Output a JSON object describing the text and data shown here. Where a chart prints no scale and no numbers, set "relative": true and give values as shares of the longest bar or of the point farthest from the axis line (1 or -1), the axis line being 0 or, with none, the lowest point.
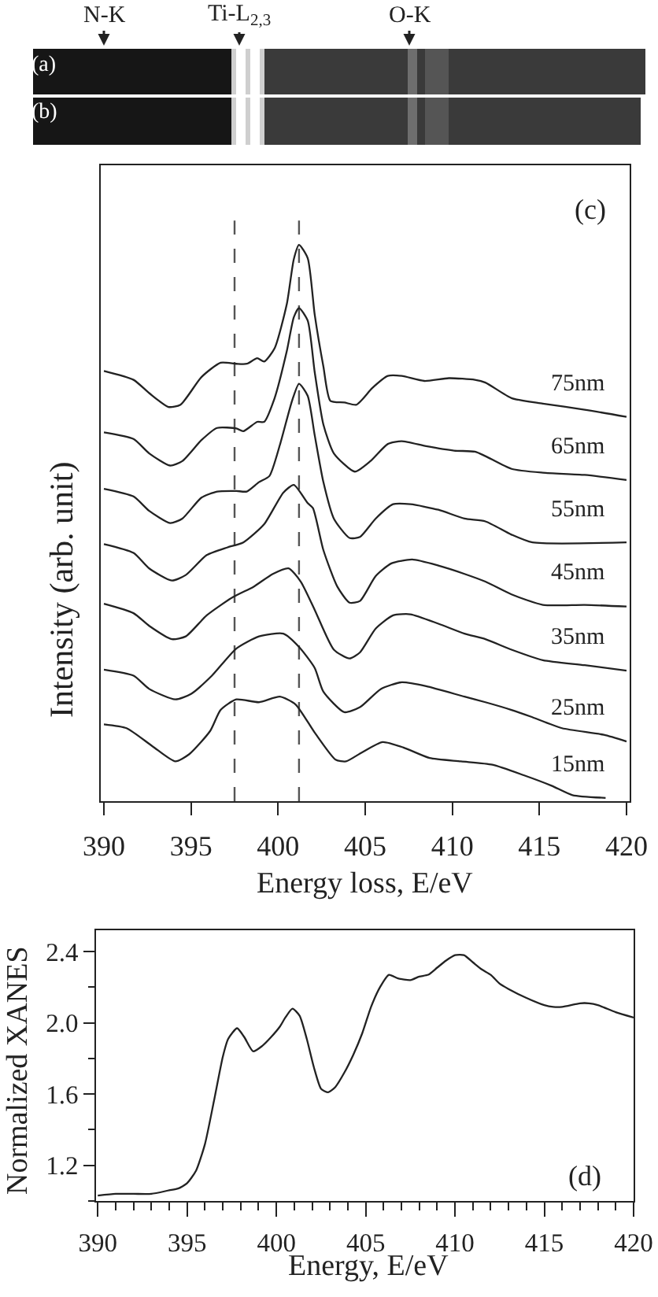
{
  "chart_data": [
    {
      "type": "other",
      "annotations": [
        "N-K",
        "Ti-L$_{2,3}$",
        "O-K",
        "(a)",
        "(b)"
      ]
    },
    {
      "type": "line",
      "relative": true,
      "xlabel": "Energy loss, E/eV",
      "ylabel": "Intensity (arb. unit)",
      "xlim": [
        389.8,
        420.2
      ],
      "xticks": [
        390,
        395,
        400,
        405,
        410,
        415,
        420
      ],
      "annotations": [
        "(c)"
      ],
      "ref_lines": [
        {
          "axis": "x",
          "value": 397.5,
          "color": "#555555",
          "line_style": "dashed"
        },
        {
          "axis": "x",
          "value": 401.2,
          "color": "#555555",
          "line_style": "dashed"
        }
      ],
      "series": [
        {
          "name": "75nm",
          "color": "#222222",
          "x": [
            390,
            391.7,
            392.6,
            393.7,
            394.4,
            395.6,
            396.7,
            397.6,
            398.2,
            398.8,
            399.2,
            399.8,
            400.5,
            400.9,
            401.2,
            401.7,
            402.1,
            402.6,
            403.0,
            403.8,
            404.5,
            405.4,
            406.3,
            407.1,
            408.4,
            409.8,
            411.3,
            411.9,
            413.4,
            415.2,
            417.6,
            420
          ],
          "values": [
            0.772,
            0.756,
            0.732,
            0.707,
            0.711,
            0.761,
            0.787,
            0.785,
            0.785,
            0.795,
            0.789,
            0.813,
            0.893,
            0.974,
            1.0,
            0.976,
            0.874,
            0.78,
            0.718,
            0.715,
            0.711,
            0.741,
            0.763,
            0.763,
            0.754,
            0.759,
            0.756,
            0.751,
            0.723,
            0.713,
            0.702,
            0.689
          ]
        },
        {
          "name": "65nm",
          "color": "#222222",
          "x": [
            390,
            391.7,
            392.6,
            393.8,
            394.5,
            395.6,
            396.5,
            397.6,
            398.0,
            398.8,
            399.2,
            399.8,
            400.5,
            400.9,
            401.2,
            401.7,
            402.1,
            402.6,
            403.2,
            404.4,
            405.3,
            406.3,
            407.1,
            408.5,
            410.1,
            411.3,
            411.9,
            413.4,
            415.2,
            417.6,
            420
          ],
          "values": [
            0.661,
            0.649,
            0.623,
            0.601,
            0.609,
            0.647,
            0.669,
            0.668,
            0.663,
            0.68,
            0.68,
            0.723,
            0.808,
            0.869,
            0.886,
            0.863,
            0.77,
            0.675,
            0.623,
            0.59,
            0.609,
            0.64,
            0.645,
            0.636,
            0.628,
            0.626,
            0.618,
            0.595,
            0.588,
            0.584,
            0.575
          ]
        },
        {
          "name": "55nm",
          "color": "#222222",
          "x": [
            390,
            391.7,
            392.6,
            393.8,
            394.5,
            395.6,
            396.5,
            397.6,
            398.2,
            398.9,
            399.5,
            400.1,
            400.8,
            401.2,
            401.7,
            402.1,
            402.6,
            403.2,
            404.1,
            404.7,
            405.6,
            406.6,
            407.6,
            409.2,
            410.7,
            411.9,
            413.4,
            414.6,
            420
          ],
          "values": [
            0.559,
            0.545,
            0.519,
            0.497,
            0.505,
            0.543,
            0.554,
            0.555,
            0.554,
            0.571,
            0.582,
            0.638,
            0.718,
            0.749,
            0.727,
            0.656,
            0.571,
            0.505,
            0.47,
            0.472,
            0.505,
            0.531,
            0.531,
            0.521,
            0.505,
            0.5,
            0.476,
            0.462,
            0.462
          ]
        },
        {
          "name": "45nm",
          "color": "#222222",
          "x": [
            390,
            391.7,
            392.6,
            393.9,
            394.7,
            395.9,
            397.1,
            398.0,
            399.2,
            400.3,
            400.9,
            401.7,
            402.0,
            402.6,
            403.4,
            404.1,
            404.7,
            405.6,
            406.5,
            407.7,
            409.2,
            410.7,
            411.9,
            413.4,
            415.2,
            417.6,
            420
          ],
          "values": [
            0.459,
            0.443,
            0.415,
            0.393,
            0.403,
            0.439,
            0.453,
            0.462,
            0.495,
            0.552,
            0.566,
            0.533,
            0.524,
            0.448,
            0.382,
            0.353,
            0.356,
            0.401,
            0.424,
            0.431,
            0.42,
            0.405,
            0.391,
            0.368,
            0.349,
            0.349,
            0.346
          ]
        },
        {
          "name": "35nm",
          "color": "#222222",
          "x": [
            390,
            391.7,
            392.6,
            393.9,
            394.7,
            395.9,
            397.4,
            398.6,
            399.7,
            400.6,
            401.3,
            402.1,
            403.2,
            404.1,
            404.7,
            405.6,
            406.6,
            407.6,
            409.2,
            410.7,
            411.9,
            413.4,
            415.2,
            417.6,
            420
          ],
          "values": [
            0.351,
            0.334,
            0.311,
            0.287,
            0.292,
            0.33,
            0.363,
            0.382,
            0.405,
            0.415,
            0.391,
            0.34,
            0.268,
            0.252,
            0.263,
            0.306,
            0.33,
            0.332,
            0.315,
            0.297,
            0.287,
            0.268,
            0.249,
            0.24,
            0.23
          ]
        },
        {
          "name": "25nm",
          "color": "#222222",
          "x": [
            390,
            391.7,
            392.6,
            394.1,
            395.0,
            396.2,
            397.6,
            398.9,
            400.3,
            401.2,
            402.1,
            402.6,
            403.8,
            404.7,
            405.9,
            407.1,
            408.5,
            410.7,
            411.9,
            413.4,
            414.5,
            416.3,
            418.7,
            420
          ],
          "values": [
            0.232,
            0.221,
            0.197,
            0.178,
            0.188,
            0.221,
            0.27,
            0.292,
            0.297,
            0.273,
            0.235,
            0.192,
            0.155,
            0.164,
            0.197,
            0.209,
            0.202,
            0.183,
            0.173,
            0.159,
            0.147,
            0.126,
            0.114,
            0.102
          ]
        },
        {
          "name": "15nm",
          "color": "#222222",
          "x": [
            390,
            391.3,
            392.8,
            394.1,
            394.9,
            396.1,
            396.7,
            397.6,
            398.9,
            400.1,
            401.0,
            402.1,
            403.3,
            403.9,
            404.8,
            406.0,
            407.2,
            408.7,
            410.5,
            412.3,
            414.1,
            415.7,
            416.9,
            418.8
          ],
          "values": [
            0.133,
            0.126,
            0.093,
            0.066,
            0.079,
            0.121,
            0.159,
            0.178,
            0.173,
            0.183,
            0.169,
            0.118,
            0.069,
            0.066,
            0.082,
            0.101,
            0.091,
            0.072,
            0.066,
            0.06,
            0.041,
            0.022,
            0.005,
            0.0
          ]
        }
      ]
    },
    {
      "type": "line",
      "xlabel": "Energy, E/eV",
      "ylabel": "Normalized XANES",
      "xlim": [
        389.9,
        420
      ],
      "ylim": [
        1.0,
        2.52
      ],
      "xticks": [
        390,
        {
          "value": 391,
          "label": null
        },
        {
          "value": 392,
          "label": null
        },
        {
          "value": 393,
          "label": null
        },
        {
          "value": 394,
          "label": null
        },
        395,
        {
          "value": 396,
          "label": null
        },
        {
          "value": 397,
          "label": null
        },
        {
          "value": 398,
          "label": null
        },
        {
          "value": 399,
          "label": null
        },
        400,
        {
          "value": 401,
          "label": null
        },
        {
          "value": 402,
          "label": null
        },
        {
          "value": 403,
          "label": null
        },
        {
          "value": 404,
          "label": null
        },
        405,
        {
          "value": 406,
          "label": null
        },
        {
          "value": 407,
          "label": null
        },
        {
          "value": 408,
          "label": null
        },
        {
          "value": 409,
          "label": null
        },
        410,
        {
          "value": 411,
          "label": null
        },
        {
          "value": 412,
          "label": null
        },
        {
          "value": 413,
          "label": null
        },
        {
          "value": 414,
          "label": null
        },
        415,
        {
          "value": 416,
          "label": null
        },
        {
          "value": 417,
          "label": null
        },
        {
          "value": 418,
          "label": null
        },
        {
          "value": 419,
          "label": null
        },
        420
      ],
      "yticks": [
        {
          "value": 1.0,
          "label": null
        },
        1.2,
        {
          "value": 1.4,
          "label": null
        },
        1.6,
        {
          "value": 1.8,
          "label": null
        },
        {
          "value": 2,
          "label": "2.0"
        },
        {
          "value": 2.2,
          "label": null
        },
        2.4
      ],
      "annotations": [
        "(d)"
      ],
      "series": [
        {
          "color": "#222222",
          "x": [
            390,
            391,
            392,
            393,
            394,
            394.5,
            395,
            395.5,
            396,
            396.5,
            397,
            397.3,
            397.8,
            398.2,
            398.7,
            399.2,
            399.7,
            400.2,
            400.5,
            400.9,
            401.3,
            401.7,
            402.1,
            402.5,
            402.9,
            403.3,
            403.8,
            404.3,
            404.8,
            405.3,
            405.8,
            406.3,
            406.8,
            407.5,
            408,
            408.5,
            409,
            409.5,
            410,
            410.5,
            411,
            411.5,
            412,
            412.5,
            413,
            414,
            415,
            415.5,
            416,
            417,
            417.5,
            418,
            419,
            420
          ],
          "values": [
            1.03,
            1.04,
            1.04,
            1.04,
            1.06,
            1.07,
            1.1,
            1.17,
            1.32,
            1.56,
            1.81,
            1.91,
            1.97,
            1.92,
            1.84,
            1.87,
            1.92,
            1.98,
            2.03,
            2.08,
            2.04,
            1.91,
            1.75,
            1.63,
            1.61,
            1.64,
            1.72,
            1.82,
            1.94,
            2.09,
            2.2,
            2.27,
            2.25,
            2.24,
            2.26,
            2.27,
            2.31,
            2.35,
            2.38,
            2.38,
            2.34,
            2.3,
            2.27,
            2.22,
            2.19,
            2.14,
            2.1,
            2.09,
            2.09,
            2.11,
            2.11,
            2.1,
            2.06,
            2.03
          ]
        }
      ]
    }
  ]
}
